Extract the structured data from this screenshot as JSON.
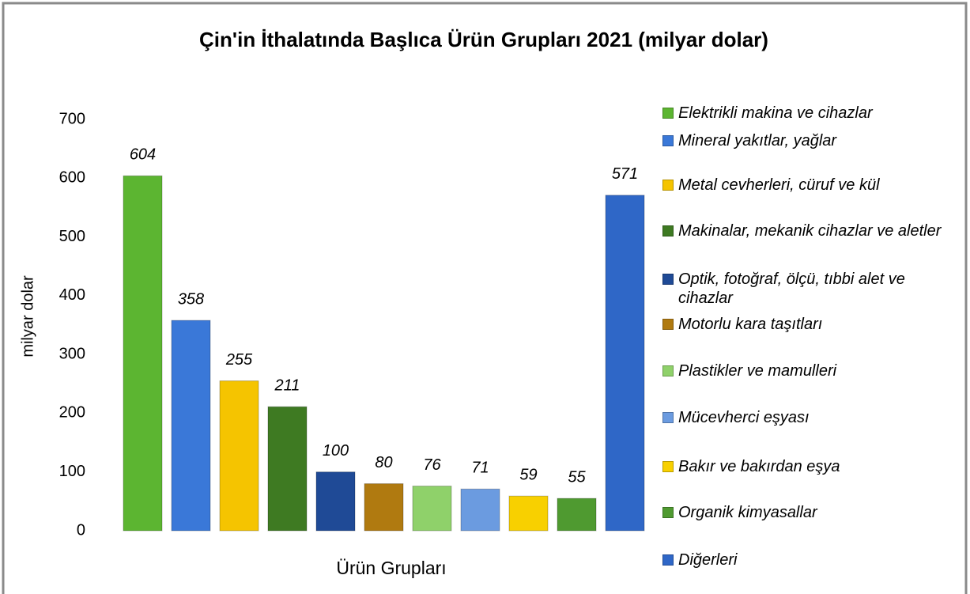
{
  "chart_data": {
    "type": "bar",
    "title": "Çin'in İthalatında Başlıca Ürün Grupları 2021 (milyar dolar)",
    "categories": [
      "Elektrikli makina ve cihazlar",
      "Mineral yakıtlar, yağlar",
      "Metal cevherleri, cüruf ve kül",
      "Makinalar, mekanik cihazlar ve aletler",
      "Optik, fotoğraf, ölçü, tıbbi alet ve cihazlar",
      "Motorlu kara taşıtları",
      "Plastikler ve mamulleri",
      "Mücevherci eşyası",
      "Bakır ve bakırdan eşya",
      "Organik kimyasallar",
      "Diğerleri"
    ],
    "values": [
      604,
      358,
      255,
      211,
      100,
      80,
      76,
      71,
      59,
      55,
      571
    ],
    "colors": [
      "#5cb531",
      "#3a78d8",
      "#f5c400",
      "#3e7a22",
      "#1f4a96",
      "#b07a10",
      "#8fd16a",
      "#6b9be0",
      "#f8d000",
      "#4f9a30",
      "#2f67c7"
    ],
    "ylim": [
      0,
      700
    ],
    "yticks": [
      0,
      100,
      200,
      300,
      400,
      500,
      600,
      700
    ],
    "x_label": "Ürün Grupları",
    "y_label": "milyar dolar",
    "legend": "right"
  }
}
